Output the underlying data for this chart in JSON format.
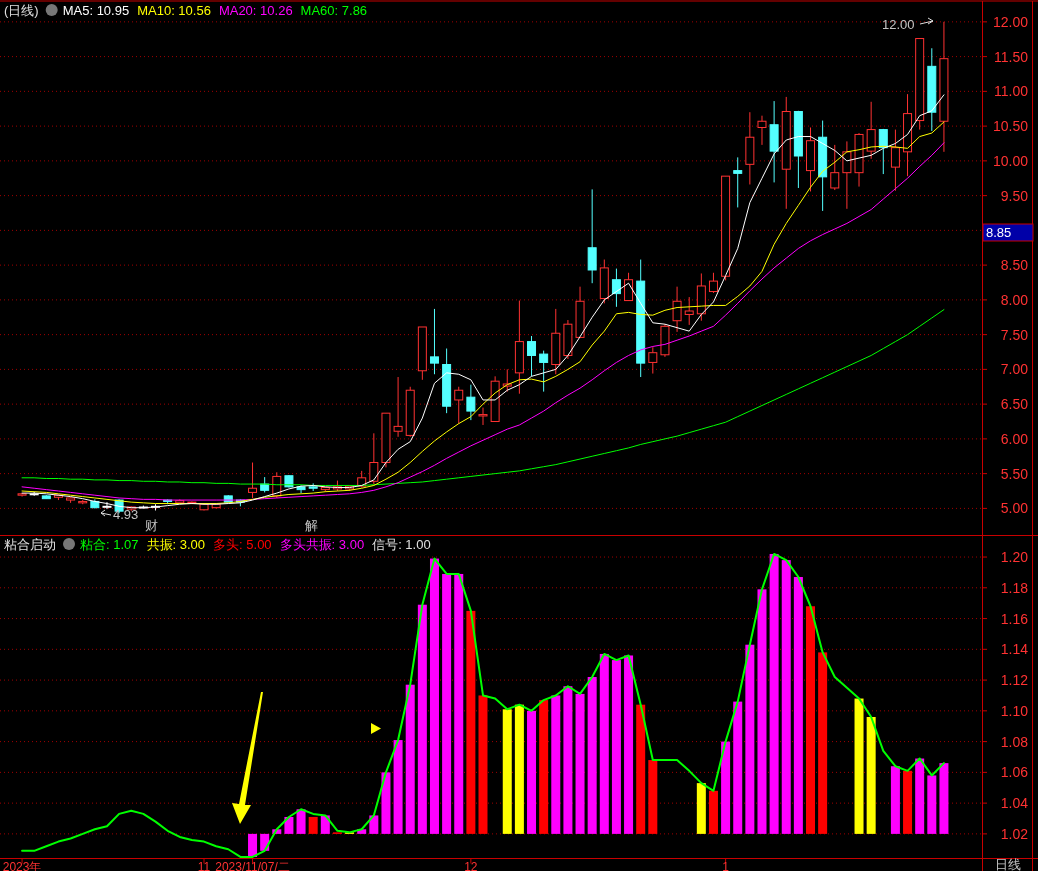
{
  "chart_data": [
    {
      "type": "candlestick",
      "title": "(日线)",
      "categories": [
        null,
        null,
        null,
        null,
        null,
        null,
        null,
        null,
        null,
        null,
        null,
        null,
        null,
        null,
        null,
        null,
        null,
        null,
        null,
        null,
        null,
        null,
        null,
        null,
        null,
        null,
        null,
        null,
        null,
        null,
        null,
        null,
        null,
        null,
        null,
        null,
        null,
        null,
        null,
        null,
        null,
        null,
        null,
        null,
        null,
        null,
        null,
        null,
        null,
        null,
        null,
        null,
        null,
        null,
        null,
        null,
        null,
        null,
        null,
        null,
        null,
        null,
        null,
        null,
        null,
        null,
        null,
        null,
        null,
        null,
        null,
        null,
        null,
        null,
        null,
        null,
        null
      ],
      "ohlc": [
        [
          5.19,
          5.22,
          5.17,
          5.21
        ],
        [
          5.21,
          5.24,
          5.18,
          5.21
        ],
        [
          5.18,
          5.19,
          5.14,
          5.14
        ],
        [
          5.16,
          5.2,
          5.12,
          5.19
        ],
        [
          5.12,
          5.16,
          5.08,
          5.15
        ],
        [
          5.08,
          5.12,
          5.06,
          5.1
        ],
        [
          5.1,
          5.13,
          5.0,
          5.01
        ],
        [
          5.03,
          5.09,
          4.99,
          5.03
        ],
        [
          5.12,
          5.13,
          4.93,
          4.96
        ],
        [
          4.99,
          5.03,
          4.96,
          5.02
        ],
        [
          5.02,
          5.04,
          5.0,
          5.02
        ],
        [
          5.03,
          5.06,
          4.97,
          5.03
        ],
        [
          5.12,
          5.13,
          5.06,
          5.1
        ],
        [
          5.08,
          5.13,
          5.06,
          5.11
        ],
        [
          5.08,
          5.1,
          5.06,
          5.09
        ],
        [
          4.98,
          5.07,
          4.97,
          5.06
        ],
        [
          5.01,
          5.07,
          5.0,
          5.06
        ],
        [
          5.18,
          5.19,
          5.09,
          5.09
        ],
        [
          5.12,
          5.13,
          5.03,
          5.09
        ],
        [
          5.23,
          5.66,
          5.15,
          5.29
        ],
        [
          5.35,
          5.45,
          5.23,
          5.26
        ],
        [
          5.18,
          5.52,
          5.15,
          5.46
        ],
        [
          5.47,
          5.48,
          5.3,
          5.31
        ],
        [
          5.31,
          5.33,
          5.22,
          5.27
        ],
        [
          5.31,
          5.36,
          5.25,
          5.29
        ],
        [
          5.27,
          5.3,
          5.24,
          5.3
        ],
        [
          5.28,
          5.4,
          5.25,
          5.31
        ],
        [
          5.28,
          5.33,
          5.25,
          5.32
        ],
        [
          5.32,
          5.54,
          5.3,
          5.44
        ],
        [
          5.39,
          6.08,
          5.35,
          5.66
        ],
        [
          5.66,
          6.37,
          5.59,
          6.37
        ],
        [
          6.11,
          6.89,
          6.03,
          6.18
        ],
        [
          6.05,
          6.75,
          6.03,
          6.7
        ],
        [
          6.98,
          7.61,
          6.85,
          7.61
        ],
        [
          7.18,
          7.87,
          6.93,
          7.09
        ],
        [
          7.07,
          7.3,
          6.37,
          6.47
        ],
        [
          6.56,
          6.75,
          6.22,
          6.7
        ],
        [
          6.6,
          6.78,
          6.27,
          6.4
        ],
        [
          6.33,
          6.45,
          6.2,
          6.35
        ],
        [
          6.25,
          6.9,
          6.25,
          6.83
        ],
        [
          6.76,
          7.0,
          6.68,
          6.79
        ],
        [
          6.95,
          7.99,
          6.65,
          7.4
        ],
        [
          7.4,
          7.48,
          6.9,
          7.2
        ],
        [
          7.22,
          7.27,
          6.68,
          7.1
        ],
        [
          7.07,
          7.87,
          6.93,
          7.52
        ],
        [
          7.2,
          7.71,
          7.15,
          7.65
        ],
        [
          7.46,
          8.19,
          7.45,
          7.98
        ],
        [
          8.75,
          9.59,
          8.24,
          8.43
        ],
        [
          8.02,
          8.58,
          7.95,
          8.46
        ],
        [
          8.29,
          8.45,
          7.9,
          8.09
        ],
        [
          7.99,
          8.39,
          7.99,
          8.29
        ],
        [
          8.27,
          8.58,
          6.89,
          7.09
        ],
        [
          7.1,
          7.32,
          6.94,
          7.24
        ],
        [
          7.21,
          7.65,
          7.18,
          7.62
        ],
        [
          7.7,
          8.19,
          7.54,
          7.98
        ],
        [
          7.79,
          8.04,
          7.64,
          7.84
        ],
        [
          7.8,
          8.38,
          7.7,
          8.2
        ],
        [
          8.12,
          8.39,
          8.1,
          8.27
        ],
        [
          8.34,
          9.78,
          8.28,
          9.78
        ],
        [
          9.86,
          10.05,
          9.33,
          9.82
        ],
        [
          9.95,
          10.7,
          9.66,
          10.34
        ],
        [
          10.48,
          10.65,
          10.23,
          10.57
        ],
        [
          10.52,
          10.86,
          9.69,
          10.14
        ],
        [
          9.88,
          10.92,
          9.31,
          10.71
        ],
        [
          10.71,
          10.72,
          9.61,
          10.07
        ],
        [
          9.86,
          10.48,
          9.56,
          10.29
        ],
        [
          10.34,
          10.58,
          9.28,
          9.77
        ],
        [
          9.61,
          10.23,
          9.58,
          9.83
        ],
        [
          9.83,
          10.28,
          9.31,
          10.13
        ],
        [
          9.83,
          10.4,
          9.63,
          10.38
        ],
        [
          10.14,
          10.85,
          10.03,
          10.45
        ],
        [
          10.45,
          10.46,
          9.81,
          10.19
        ],
        [
          9.91,
          10.45,
          9.57,
          10.19
        ],
        [
          10.13,
          10.96,
          9.78,
          10.68
        ],
        [
          10.58,
          11.76,
          10.45,
          11.76
        ],
        [
          11.36,
          11.62,
          10.43,
          10.7
        ],
        [
          10.57,
          12.0,
          10.13,
          11.47
        ]
      ],
      "series": [
        {
          "name": "MA5: 10.95",
          "type": "line",
          "color": "#ffffff",
          "values": [
            5.22,
            5.22,
            5.21,
            5.19,
            5.17,
            5.14,
            5.1,
            5.07,
            5.03,
            5.01,
            5.01,
            5.02,
            5.04,
            5.06,
            5.07,
            5.06,
            5.06,
            5.07,
            5.08,
            5.12,
            5.17,
            5.22,
            5.28,
            5.32,
            5.33,
            5.31,
            5.3,
            5.3,
            5.33,
            5.41,
            5.66,
            5.85,
            5.96,
            6.3,
            6.8,
            6.95,
            6.93,
            6.85,
            6.56,
            6.56,
            6.7,
            6.78,
            6.9,
            6.95,
            7.0,
            7.2,
            7.47,
            7.75,
            8.0,
            8.12,
            8.24,
            7.95,
            7.67,
            7.65,
            7.6,
            7.55,
            7.79,
            7.97,
            8.35,
            8.74,
            9.4,
            9.75,
            10.1,
            10.3,
            10.35,
            10.35,
            10.25,
            10.15,
            10.0,
            10.04,
            10.08,
            10.18,
            10.25,
            10.38,
            10.65,
            10.72,
            10.95
          ]
        },
        {
          "name": "MA10: 10.56",
          "type": "line",
          "color": "#ffff00",
          "values": [
            5.25,
            5.24,
            5.23,
            5.21,
            5.19,
            5.17,
            5.15,
            5.13,
            5.11,
            5.09,
            5.08,
            5.07,
            5.07,
            5.07,
            5.07,
            5.07,
            5.07,
            5.08,
            5.1,
            5.13,
            5.16,
            5.18,
            5.2,
            5.21,
            5.22,
            5.24,
            5.25,
            5.26,
            5.29,
            5.33,
            5.42,
            5.52,
            5.66,
            5.82,
            5.97,
            6.1,
            6.22,
            6.32,
            6.5,
            6.66,
            6.78,
            6.85,
            6.86,
            6.82,
            6.9,
            7.0,
            7.11,
            7.35,
            7.55,
            7.8,
            7.82,
            7.79,
            7.78,
            7.85,
            7.89,
            7.9,
            7.91,
            7.92,
            7.92,
            8.05,
            8.2,
            8.41,
            8.8,
            9.1,
            9.36,
            9.62,
            9.85,
            9.98,
            10.13,
            10.16,
            10.2,
            10.21,
            10.2,
            10.18,
            10.35,
            10.4,
            10.56
          ]
        },
        {
          "name": "MA20: 10.26",
          "type": "line",
          "color": "#ff00ff",
          "values": [
            5.31,
            5.29,
            5.27,
            5.25,
            5.23,
            5.21,
            5.19,
            5.17,
            5.15,
            5.14,
            5.13,
            5.13,
            5.12,
            5.12,
            5.12,
            5.12,
            5.12,
            5.12,
            5.12,
            5.13,
            5.14,
            5.15,
            5.16,
            5.17,
            5.18,
            5.19,
            5.2,
            5.21,
            5.23,
            5.26,
            5.31,
            5.37,
            5.45,
            5.53,
            5.62,
            5.72,
            5.81,
            5.9,
            5.98,
            6.06,
            6.14,
            6.2,
            6.3,
            6.4,
            6.52,
            6.63,
            6.73,
            6.85,
            6.98,
            7.1,
            7.2,
            7.28,
            7.33,
            7.36,
            7.42,
            7.48,
            7.55,
            7.62,
            7.78,
            7.95,
            8.13,
            8.3,
            8.46,
            8.6,
            8.74,
            8.85,
            8.94,
            9.02,
            9.1,
            9.2,
            9.3,
            9.45,
            9.6,
            9.75,
            9.92,
            10.08,
            10.26
          ]
        },
        {
          "name": "MA60: 7.86",
          "type": "line",
          "color": "#00ff00",
          "values": [
            5.44,
            5.44,
            5.43,
            5.43,
            5.42,
            5.42,
            5.41,
            5.41,
            5.4,
            5.4,
            5.39,
            5.39,
            5.38,
            5.38,
            5.37,
            5.37,
            5.36,
            5.36,
            5.35,
            5.35,
            5.35,
            5.34,
            5.34,
            5.34,
            5.33,
            5.33,
            5.33,
            5.33,
            5.33,
            5.34,
            5.35,
            5.36,
            5.37,
            5.38,
            5.4,
            5.42,
            5.44,
            5.46,
            5.48,
            5.5,
            5.52,
            5.54,
            5.57,
            5.6,
            5.63,
            5.67,
            5.71,
            5.75,
            5.79,
            5.83,
            5.87,
            5.92,
            5.96,
            6.0,
            6.04,
            6.09,
            6.14,
            6.19,
            6.24,
            6.32,
            6.4,
            6.48,
            6.56,
            6.64,
            6.72,
            6.8,
            6.88,
            6.96,
            7.04,
            7.12,
            7.2,
            7.3,
            7.4,
            7.5,
            7.62,
            7.74,
            7.86
          ]
        }
      ],
      "ylim": [
        4.61,
        12.3
      ],
      "yticks": [
        {
          "value": 5,
          "label": "5.00"
        },
        {
          "value": 5.5,
          "label": "5.50"
        },
        {
          "value": 6,
          "label": "6.00"
        },
        {
          "value": 6.5,
          "label": "6.50"
        },
        {
          "value": 7,
          "label": "7.00"
        },
        {
          "value": 7.5,
          "label": "7.50"
        },
        {
          "value": 8,
          "label": "8.00"
        },
        {
          "value": 8.5,
          "label": "8.50"
        },
        {
          "value": 9,
          "label": null
        },
        {
          "value": 9.5,
          "label": "9.50"
        },
        {
          "value": 10,
          "label": "10.00"
        },
        {
          "value": 10.5,
          "label": "10.50"
        },
        {
          "value": 11,
          "label": "11.00"
        },
        {
          "value": 11.5,
          "label": "11.50"
        },
        {
          "value": 12,
          "label": "12.00"
        }
      ],
      "annotations": [
        "12.00",
        "4.93",
        "财",
        "解",
        "8.85"
      ],
      "grid": "y",
      "legend": "top left",
      "tick_labels": "y"
    },
    {
      "type": "bar",
      "title": "粘合启动",
      "categories": [
        "2023年",
        null,
        null,
        null,
        null,
        null,
        null,
        null,
        null,
        null,
        null,
        null,
        null,
        null,
        null,
        "11",
        null,
        null,
        null,
        "2023/11/07/二",
        null,
        null,
        null,
        null,
        null,
        null,
        null,
        null,
        null,
        null,
        null,
        null,
        null,
        null,
        null,
        null,
        null,
        "12",
        null,
        null,
        null,
        null,
        null,
        null,
        null,
        null,
        null,
        null,
        null,
        null,
        null,
        null,
        null,
        null,
        null,
        null,
        null,
        null,
        "1",
        null,
        null,
        null,
        null,
        null,
        null,
        null,
        null,
        null,
        null,
        null,
        null,
        null,
        null,
        null,
        null,
        null,
        null
      ],
      "series": [
        {
          "name": "粘合: 1.07",
          "type": "line",
          "color": "#00ff00",
          "values": [
            1.009,
            1.009,
            1.012,
            1.015,
            1.017,
            1.02,
            1.023,
            1.025,
            1.033,
            1.035,
            1.033,
            1.028,
            1.022,
            1.018,
            1.016,
            1.015,
            1.012,
            1.01,
            1.005,
            1.005,
            1.009,
            1.023,
            1.031,
            1.036,
            1.033,
            1.032,
            1.022,
            1.021,
            1.023,
            1.032,
            1.06,
            1.081,
            1.117,
            1.169,
            1.199,
            1.189,
            1.189,
            1.165,
            1.11,
            1.108,
            1.101,
            1.104,
            1.1,
            1.107,
            1.11,
            1.116,
            1.111,
            1.122,
            1.137,
            1.133,
            1.136,
            1.104,
            1.068,
            1.068,
            1.068,
            1.061,
            1.053,
            1.048,
            1.08,
            1.106,
            1.143,
            1.179,
            1.202,
            1.198,
            1.187,
            1.168,
            1.138,
            1.122,
            1.115,
            1.108,
            1.096,
            1.074,
            1.064,
            1.061,
            1.069,
            1.058,
            1.066
          ]
        },
        {
          "name": "共振: 3.00",
          "color": "#ffff00",
          "base": [
            null,
            null,
            null,
            null,
            null,
            null,
            null,
            null,
            null,
            null,
            null,
            null,
            null,
            null,
            null,
            null,
            null,
            null,
            null,
            null,
            null,
            null,
            null,
            null,
            null,
            null,
            null,
            1.02,
            null,
            null,
            null,
            null,
            null,
            null,
            null,
            null,
            null,
            null,
            null,
            null,
            1.02,
            1.02,
            null,
            null,
            null,
            null,
            null,
            null,
            null,
            null,
            null,
            null,
            null,
            null,
            null,
            null,
            1.02,
            null,
            null,
            null,
            null,
            null,
            null,
            null,
            null,
            null,
            null,
            null,
            null,
            1.02,
            1.02,
            null,
            null,
            null,
            null,
            null,
            null
          ],
          "values": [
            null,
            null,
            null,
            null,
            null,
            null,
            null,
            null,
            null,
            null,
            null,
            null,
            null,
            null,
            null,
            null,
            null,
            null,
            null,
            null,
            null,
            null,
            null,
            null,
            null,
            null,
            null,
            0.001,
            null,
            null,
            null,
            null,
            null,
            null,
            null,
            null,
            null,
            null,
            null,
            null,
            0.081,
            0.084,
            null,
            null,
            null,
            null,
            null,
            null,
            null,
            null,
            null,
            null,
            null,
            null,
            null,
            null,
            0.033,
            null,
            null,
            null,
            null,
            null,
            null,
            null,
            null,
            null,
            null,
            null,
            null,
            0.088,
            0.076,
            null,
            null,
            null,
            null,
            null,
            null
          ]
        },
        {
          "name": "多头: 5.00",
          "color": "#ff0000",
          "base": [
            null,
            null,
            null,
            null,
            null,
            null,
            null,
            null,
            null,
            null,
            null,
            null,
            null,
            null,
            null,
            null,
            null,
            null,
            null,
            null,
            null,
            null,
            null,
            null,
            1.02,
            null,
            1.02,
            null,
            null,
            null,
            null,
            null,
            null,
            null,
            null,
            null,
            null,
            1.02,
            1.02,
            null,
            null,
            null,
            null,
            1.02,
            null,
            null,
            null,
            null,
            null,
            null,
            null,
            1.02,
            1.02,
            null,
            null,
            null,
            null,
            1.02,
            null,
            null,
            null,
            null,
            null,
            null,
            null,
            1.02,
            1.02,
            null,
            null,
            null,
            null,
            null,
            null,
            1.02,
            null,
            null,
            null
          ],
          "values": [
            null,
            null,
            null,
            null,
            null,
            null,
            null,
            null,
            null,
            null,
            null,
            null,
            null,
            null,
            null,
            null,
            null,
            null,
            null,
            null,
            null,
            null,
            null,
            null,
            0.011,
            null,
            0.001,
            null,
            null,
            null,
            null,
            null,
            null,
            null,
            null,
            null,
            null,
            0.145,
            0.09,
            null,
            null,
            null,
            null,
            0.087,
            null,
            null,
            null,
            null,
            null,
            null,
            null,
            0.084,
            0.048,
            null,
            null,
            null,
            null,
            0.028,
            null,
            null,
            null,
            null,
            null,
            null,
            null,
            0.148,
            0.118,
            null,
            null,
            null,
            null,
            null,
            null,
            0.041,
            null,
            null,
            null
          ]
        },
        {
          "name": "多头共振: 3.00",
          "color": "#ff00ff",
          "base": [
            null,
            null,
            null,
            null,
            null,
            null,
            null,
            null,
            null,
            null,
            null,
            null,
            null,
            null,
            null,
            null,
            null,
            null,
            null,
            1.02,
            1.02,
            1.02,
            1.02,
            1.02,
            null,
            1.02,
            null,
            null,
            1.02,
            1.02,
            1.02,
            1.02,
            1.02,
            1.02,
            1.02,
            1.02,
            1.02,
            null,
            null,
            null,
            null,
            null,
            1.02,
            null,
            1.02,
            1.02,
            1.02,
            1.02,
            1.02,
            1.02,
            1.02,
            null,
            null,
            null,
            null,
            null,
            null,
            null,
            1.02,
            1.02,
            1.02,
            1.02,
            1.02,
            1.02,
            1.02,
            null,
            null,
            null,
            null,
            null,
            null,
            null,
            1.02,
            null,
            1.02,
            1.02,
            1.02
          ],
          "values": [
            null,
            null,
            null,
            null,
            null,
            null,
            null,
            null,
            null,
            null,
            null,
            null,
            null,
            null,
            null,
            null,
            null,
            null,
            null,
            -0.015,
            -0.011,
            0.003,
            0.011,
            0.016,
            null,
            0.012,
            null,
            null,
            0.003,
            0.012,
            0.04,
            0.061,
            0.097,
            0.149,
            0.179,
            0.169,
            0.169,
            null,
            null,
            null,
            null,
            null,
            0.08,
            null,
            0.09,
            0.096,
            0.091,
            0.102,
            0.117,
            0.113,
            0.116,
            null,
            null,
            null,
            null,
            null,
            null,
            null,
            0.06,
            0.086,
            0.123,
            0.159,
            0.182,
            0.178,
            0.167,
            null,
            null,
            null,
            null,
            null,
            null,
            null,
            0.044,
            null,
            0.049,
            0.038,
            0.046
          ]
        }
      ],
      "ylim": [
        1.004,
        1.214
      ],
      "yticks": [
        {
          "value": 1.02,
          "label": "1.02"
        },
        {
          "value": 1.04,
          "label": "1.04"
        },
        {
          "value": 1.06,
          "label": "1.06"
        },
        {
          "value": 1.08,
          "label": "1.08"
        },
        {
          "value": 1.1,
          "label": "1.10"
        },
        {
          "value": 1.12,
          "label": "1.12"
        },
        {
          "value": 1.14,
          "label": "1.14"
        },
        {
          "value": 1.16,
          "label": "1.16"
        },
        {
          "value": 1.18,
          "label": "1.18"
        },
        {
          "value": 1.2,
          "label": "1.20"
        }
      ],
      "annotations": [
        "信号: 1.00",
        "日线"
      ],
      "grid": "y",
      "legend": "top left"
    }
  ]
}
